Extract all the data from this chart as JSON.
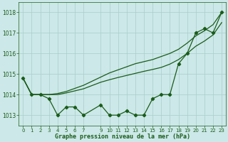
{
  "bg_color": "#cce8e8",
  "grid_color": "#aacccc",
  "line_color": "#1a5c1a",
  "title": "Graphe pression niveau de la mer (hPa)",
  "ylabel_ticks": [
    1013,
    1014,
    1015,
    1016,
    1017,
    1018
  ],
  "xlim": [
    -0.5,
    23.5
  ],
  "ylim": [
    1012.5,
    1018.5
  ],
  "x_hours": [
    0,
    1,
    2,
    3,
    4,
    5,
    6,
    7,
    9,
    10,
    11,
    12,
    13,
    14,
    15,
    16,
    17,
    18,
    19,
    20,
    21,
    22,
    23
  ],
  "data_line": [
    1014.8,
    1014.0,
    1014.0,
    1013.8,
    1013.0,
    1013.4,
    1013.4,
    1013.0,
    1013.5,
    1013.0,
    1013.0,
    1013.2,
    1013.0,
    1013.0,
    1013.8,
    1014.0,
    1014.0,
    1015.5,
    1016.0,
    1017.0,
    1017.2,
    1017.0,
    1018.0
  ],
  "upper_line": [
    1014.8,
    1014.0,
    1014.0,
    1014.0,
    1014.05,
    1014.15,
    1014.3,
    1014.45,
    1014.85,
    1015.05,
    1015.2,
    1015.35,
    1015.5,
    1015.6,
    1015.7,
    1015.85,
    1016.0,
    1016.2,
    1016.5,
    1016.85,
    1017.1,
    1017.4,
    1018.0
  ],
  "lower_line": [
    1014.8,
    1014.0,
    1014.0,
    1014.0,
    1014.0,
    1014.08,
    1014.18,
    1014.28,
    1014.6,
    1014.72,
    1014.83,
    1014.93,
    1015.03,
    1015.13,
    1015.22,
    1015.32,
    1015.48,
    1015.7,
    1016.0,
    1016.35,
    1016.6,
    1016.9,
    1017.5
  ]
}
